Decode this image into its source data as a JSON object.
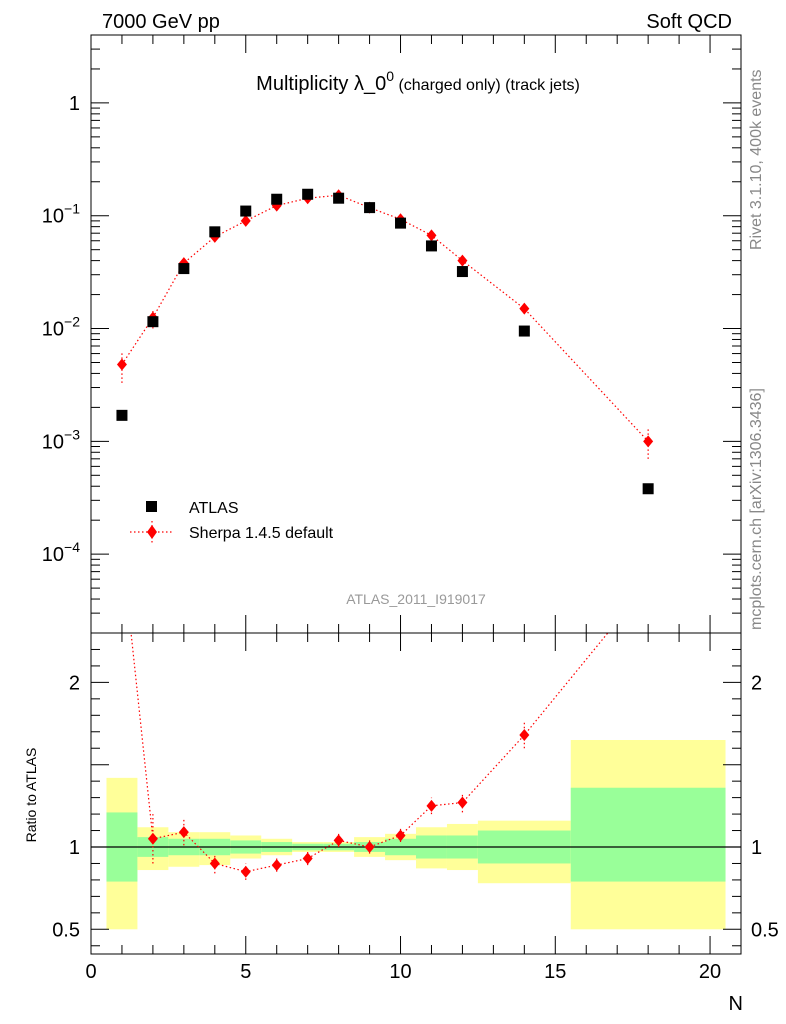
{
  "header": {
    "left_label": "7000 GeV pp",
    "right_label": "Soft QCD"
  },
  "side_labels": {
    "top": "Rivet 3.1.10,  400k events",
    "bottom": "mcplots.cern.ch [arXiv:1306.3436]"
  },
  "colors": {
    "data": "#000000",
    "mc": "#ff0000",
    "band_inner": "#99ff99",
    "band_outer": "#ffff99",
    "reference_line": "#000000"
  },
  "chart_data": [
    {
      "type": "scatter",
      "title_main": "Multiplicity λ_0",
      "title_sup": "0",
      "title_tail": " (charged only) (track jets)",
      "watermark": "ATLAS_2011_I919017",
      "yscale": "log",
      "xlim": [
        0,
        21
      ],
      "ylim": [
        2e-05,
        4
      ],
      "y_ticks": [
        {
          "value": 1,
          "base": "1",
          "exp": ""
        },
        {
          "value": 0.1,
          "base": "10",
          "exp": "−1"
        },
        {
          "value": 0.01,
          "base": "10",
          "exp": "−2"
        },
        {
          "value": 0.001,
          "base": "10",
          "exp": "−3"
        },
        {
          "value": 0.0001,
          "base": "10",
          "exp": "−4"
        }
      ],
      "legend_position": "bottom-left",
      "series": [
        {
          "name": "ATLAS",
          "marker": "square",
          "x": [
            1,
            2,
            3,
            4,
            5,
            6,
            7,
            8,
            9,
            10,
            11,
            12,
            14,
            18
          ],
          "y": [
            0.0017,
            0.0115,
            0.034,
            0.072,
            0.11,
            0.14,
            0.155,
            0.143,
            0.118,
            0.086,
            0.054,
            0.032,
            0.0095,
            0.00038
          ]
        },
        {
          "name": "Sherpa 1.4.5 default",
          "marker": "diamond",
          "line": "dotted",
          "x": [
            1,
            2,
            3,
            4,
            5,
            6,
            7,
            8,
            9,
            10,
            11,
            12,
            14,
            18
          ],
          "y": [
            0.0048,
            0.0125,
            0.038,
            0.065,
            0.09,
            0.123,
            0.143,
            0.152,
            0.118,
            0.093,
            0.067,
            0.04,
            0.015,
            0.001
          ],
          "err_lo": [
            0.0015,
            0.0025,
            0.004,
            0.005,
            0.006,
            0.007,
            0.008,
            0.008,
            0.007,
            0.006,
            0.005,
            0.004,
            0.0015,
            0.0003
          ],
          "err_hi": [
            0.0015,
            0.0025,
            0.004,
            0.005,
            0.006,
            0.007,
            0.008,
            0.008,
            0.007,
            0.006,
            0.005,
            0.004,
            0.0015,
            0.0003
          ]
        }
      ]
    },
    {
      "type": "line",
      "ylabel": "Ratio to ATLAS",
      "xlabel": "N",
      "xlim": [
        0,
        21
      ],
      "ylim": [
        0.35,
        2.3
      ],
      "x_ticks": [
        0,
        5,
        10,
        15,
        20
      ],
      "y_ticks": [
        0.5,
        1,
        1.5,
        2
      ],
      "y_tick_labels": [
        "0.5",
        "1",
        "",
        "2"
      ],
      "reference": 1,
      "bands": [
        {
          "x0": 0.5,
          "x1": 1.5,
          "outer": [
            0.5,
            1.42
          ],
          "inner": [
            0.79,
            1.21
          ]
        },
        {
          "x0": 1.5,
          "x1": 2.5,
          "outer": [
            0.86,
            1.12
          ],
          "inner": [
            0.94,
            1.06
          ]
        },
        {
          "x0": 2.5,
          "x1": 3.5,
          "outer": [
            0.88,
            1.09
          ],
          "inner": [
            0.95,
            1.05
          ]
        },
        {
          "x0": 3.5,
          "x1": 4.5,
          "outer": [
            0.89,
            1.09
          ],
          "inner": [
            0.95,
            1.05
          ]
        },
        {
          "x0": 4.5,
          "x1": 5.5,
          "outer": [
            0.93,
            1.07
          ],
          "inner": [
            0.96,
            1.04
          ]
        },
        {
          "x0": 5.5,
          "x1": 6.5,
          "outer": [
            0.95,
            1.05
          ],
          "inner": [
            0.97,
            1.03
          ]
        },
        {
          "x0": 6.5,
          "x1": 7.5,
          "outer": [
            0.97,
            1.03
          ],
          "inner": [
            0.98,
            1.02
          ]
        },
        {
          "x0": 7.5,
          "x1": 8.5,
          "outer": [
            0.97,
            1.03
          ],
          "inner": [
            0.98,
            1.02
          ]
        },
        {
          "x0": 8.5,
          "x1": 9.5,
          "outer": [
            0.94,
            1.06
          ],
          "inner": [
            0.97,
            1.03
          ]
        },
        {
          "x0": 9.5,
          "x1": 10.5,
          "outer": [
            0.92,
            1.08
          ],
          "inner": [
            0.95,
            1.05
          ]
        },
        {
          "x0": 10.5,
          "x1": 11.5,
          "outer": [
            0.87,
            1.12
          ],
          "inner": [
            0.93,
            1.07
          ]
        },
        {
          "x0": 11.5,
          "x1": 12.5,
          "outer": [
            0.86,
            1.14
          ],
          "inner": [
            0.93,
            1.07
          ]
        },
        {
          "x0": 12.5,
          "x1": 15.5,
          "outer": [
            0.78,
            1.16
          ],
          "inner": [
            0.9,
            1.1
          ]
        },
        {
          "x0": 15.5,
          "x1": 20.5,
          "outer": [
            0.5,
            1.65
          ],
          "inner": [
            0.79,
            1.36
          ]
        }
      ],
      "series": [
        {
          "name": "Sherpa 1.4.5 default",
          "x": [
            2,
            3,
            4,
            5,
            6,
            7,
            8,
            9,
            10,
            11,
            12,
            14
          ],
          "y": [
            1.05,
            1.09,
            0.9,
            0.85,
            0.89,
            0.93,
            1.04,
            1.0,
            1.07,
            1.25,
            1.27,
            1.68
          ],
          "err_lo": [
            0.15,
            0.08,
            0.06,
            0.05,
            0.04,
            0.04,
            0.04,
            0.04,
            0.04,
            0.05,
            0.06,
            0.08
          ],
          "err_hi": [
            0.15,
            0.08,
            0.06,
            0.05,
            0.04,
            0.04,
            0.04,
            0.04,
            0.04,
            0.05,
            0.06,
            0.08
          ],
          "offscale_start": {
            "x": 1,
            "y": 2.82
          },
          "offscale_end": {
            "x": 18,
            "y": 2.6
          }
        }
      ]
    }
  ]
}
